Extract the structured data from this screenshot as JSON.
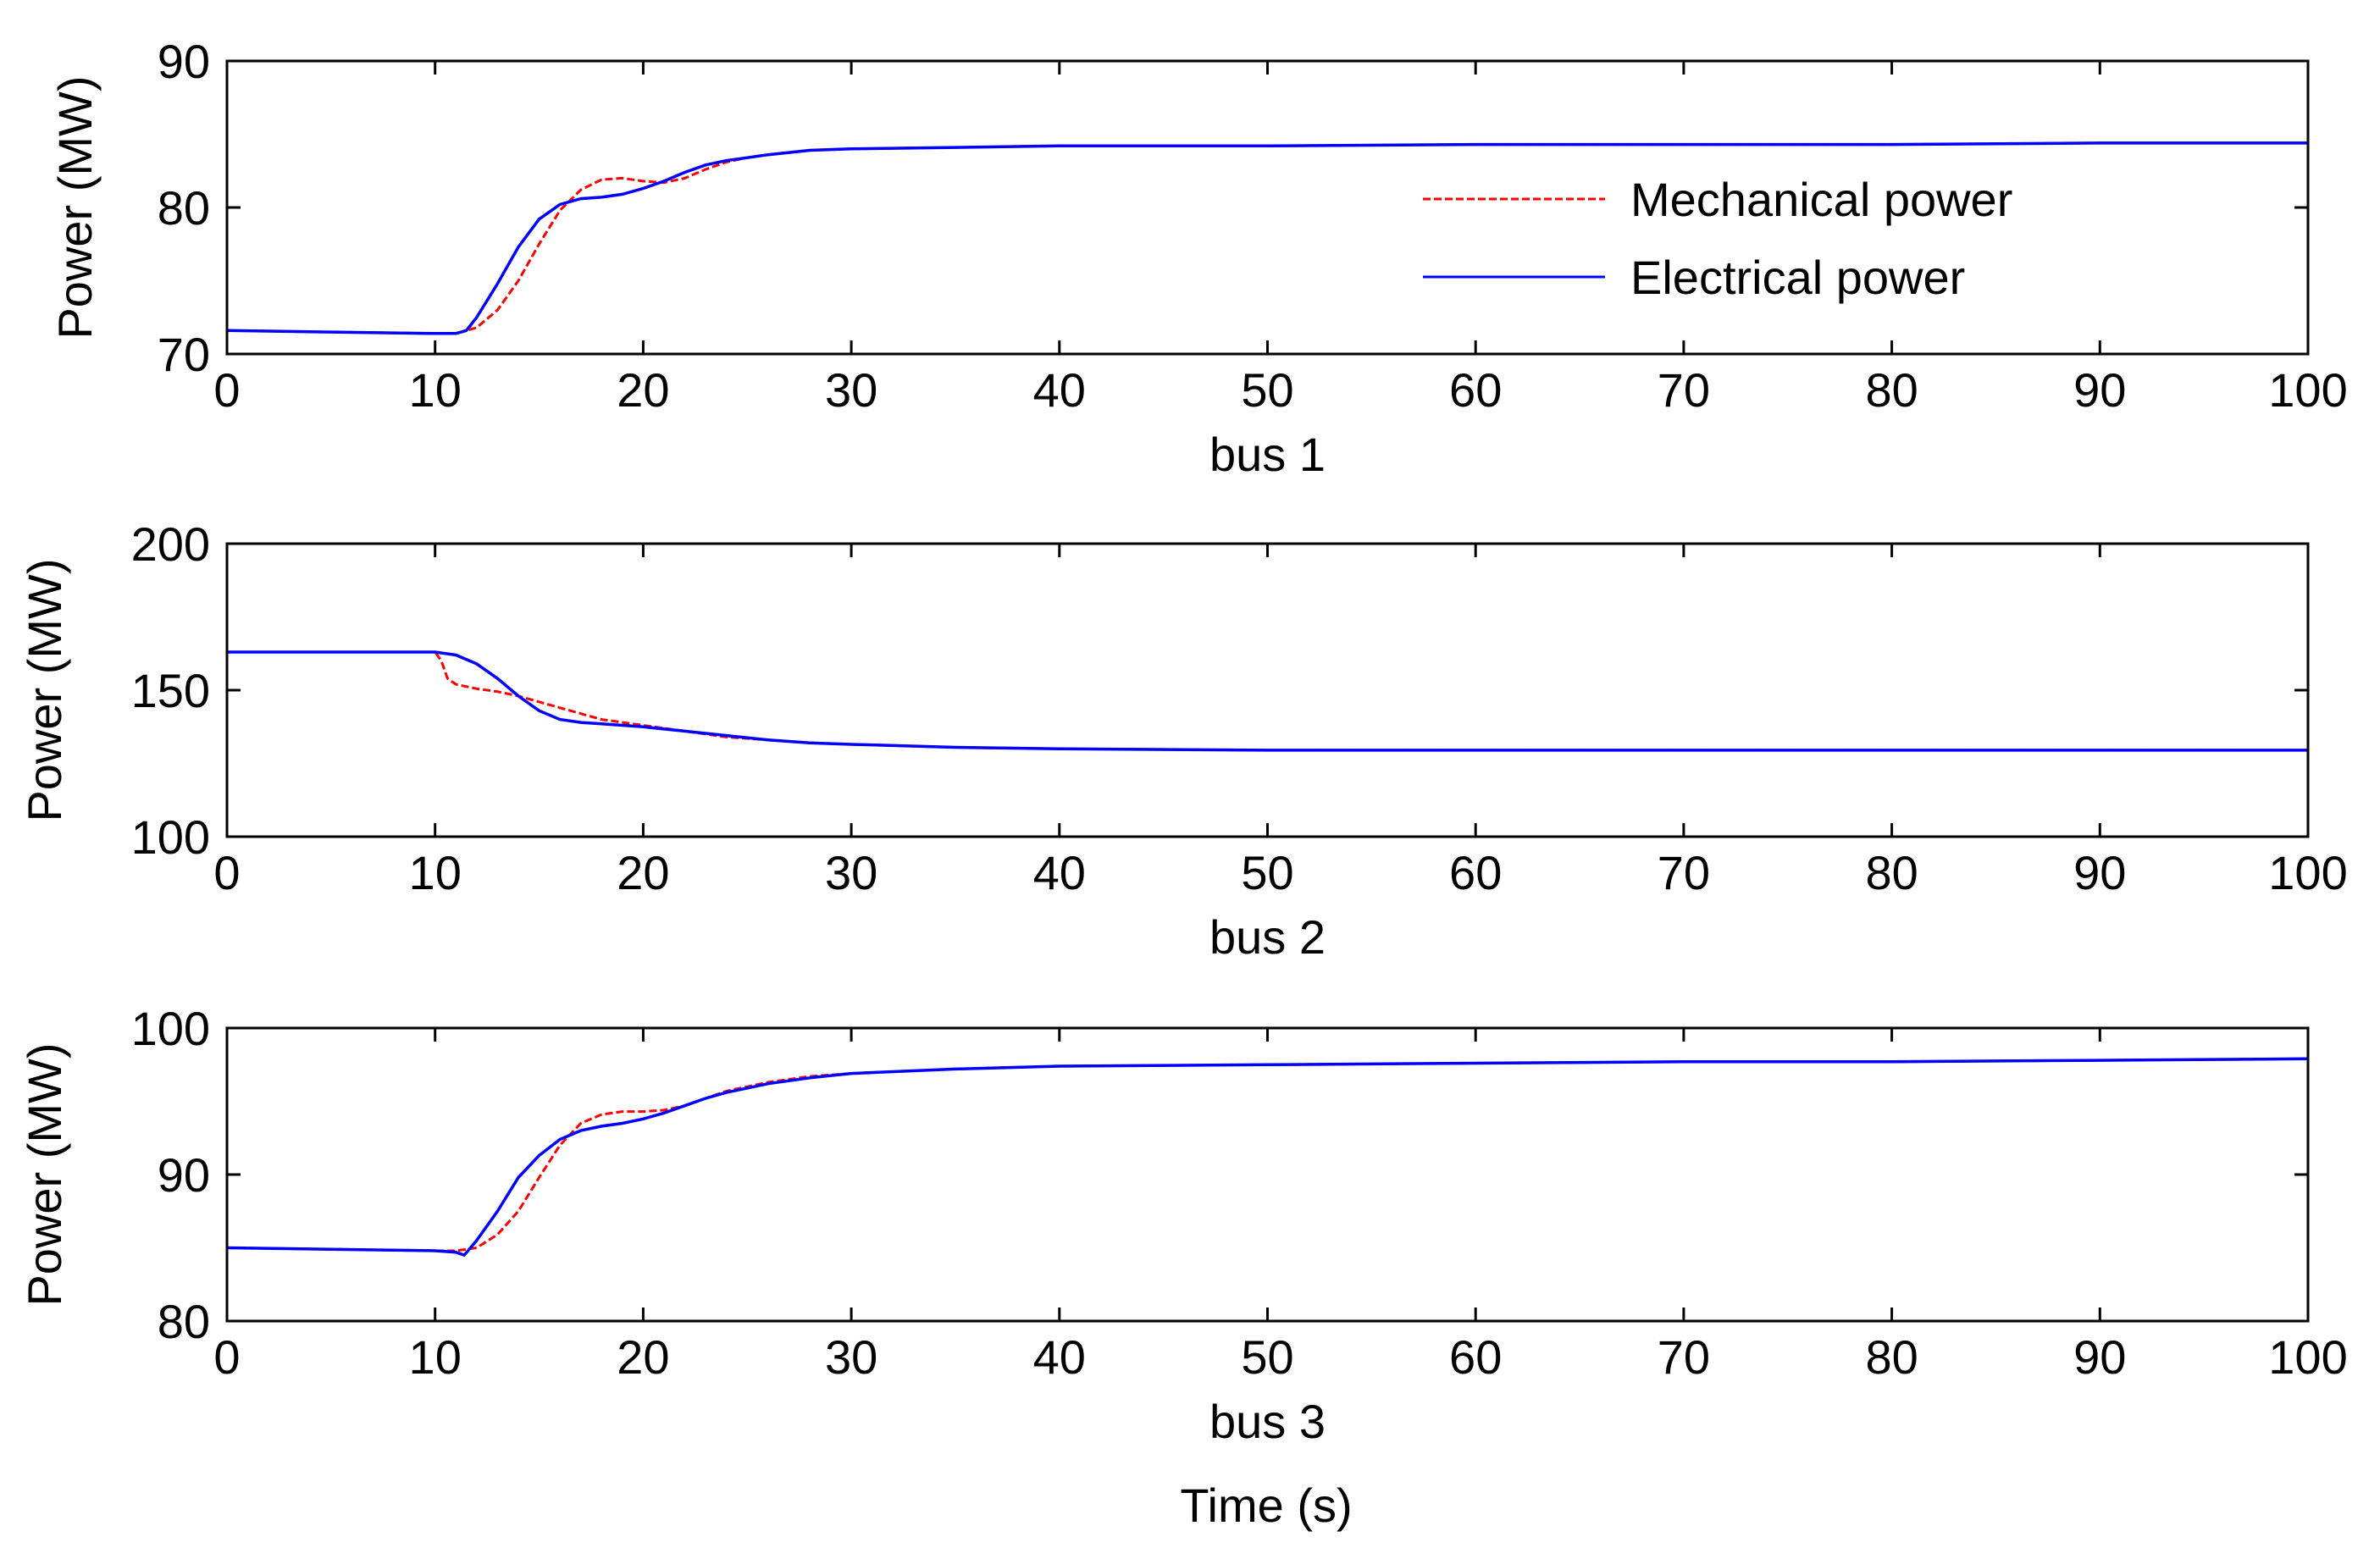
{
  "figure": {
    "xlabel": "Time (s)"
  },
  "chart_data": [
    {
      "type": "line",
      "xlabel": "bus 1",
      "ylabel": "Power (MW)",
      "xlim": [
        0,
        100
      ],
      "ylim": [
        70,
        90
      ],
      "xticks": [
        0,
        10,
        20,
        30,
        40,
        50,
        60,
        70,
        80,
        90,
        100
      ],
      "yticks": [
        70,
        80,
        90
      ],
      "grid": false,
      "legend": "upper-right",
      "series": [
        {
          "name": "Mechanical power",
          "color": "#ff0000",
          "style": "dashed",
          "x": [
            0,
            5,
            10,
            11,
            12,
            13,
            14,
            15,
            16,
            17,
            18,
            19,
            20,
            21,
            22,
            23,
            24,
            25,
            26,
            28,
            30,
            35,
            40,
            50,
            60,
            70,
            80,
            90,
            100
          ],
          "y": [
            71.6,
            71.5,
            71.4,
            71.4,
            71.8,
            73.0,
            75.0,
            77.5,
            79.8,
            81.2,
            81.9,
            82.0,
            81.8,
            81.7,
            82.0,
            82.6,
            83.1,
            83.4,
            83.6,
            83.9,
            84.0,
            84.1,
            84.2,
            84.2,
            84.3,
            84.3,
            84.3,
            84.4,
            84.4
          ]
        },
        {
          "name": "Electrical power",
          "color": "#0000ff",
          "style": "solid",
          "x": [
            0,
            5,
            10,
            11,
            11.5,
            12,
            13,
            14,
            15,
            16,
            17,
            18,
            19,
            20,
            21,
            22,
            23,
            24,
            25,
            26,
            28,
            30,
            35,
            40,
            50,
            60,
            70,
            80,
            90,
            100
          ],
          "y": [
            71.6,
            71.5,
            71.4,
            71.4,
            71.6,
            72.5,
            74.8,
            77.3,
            79.2,
            80.2,
            80.6,
            80.7,
            80.9,
            81.3,
            81.8,
            82.4,
            82.9,
            83.2,
            83.4,
            83.6,
            83.9,
            84.0,
            84.1,
            84.2,
            84.2,
            84.3,
            84.3,
            84.3,
            84.4,
            84.4
          ]
        }
      ]
    },
    {
      "type": "line",
      "xlabel": "bus 2",
      "ylabel": "Power (MW)",
      "xlim": [
        0,
        100
      ],
      "ylim": [
        100,
        200
      ],
      "xticks": [
        0,
        10,
        20,
        30,
        40,
        50,
        60,
        70,
        80,
        90,
        100
      ],
      "yticks": [
        100,
        150,
        200
      ],
      "grid": false,
      "series": [
        {
          "name": "Mechanical power",
          "color": "#ff0000",
          "style": "dashed",
          "x": [
            0,
            10,
            10.3,
            10.6,
            11,
            12,
            13,
            14,
            15,
            16,
            17,
            18,
            20,
            22,
            24,
            26,
            28,
            30,
            35,
            40,
            50,
            60,
            70,
            80,
            90,
            100
          ],
          "y": [
            163,
            163,
            160,
            154,
            152,
            150.5,
            149.5,
            148,
            146,
            144,
            142,
            140,
            138,
            136,
            134,
            133,
            132,
            131.5,
            130.5,
            130,
            129.5,
            129.5,
            129.5,
            129.5,
            129.5,
            129.5
          ]
        },
        {
          "name": "Electrical power",
          "color": "#0000ff",
          "style": "solid",
          "x": [
            0,
            10,
            11,
            12,
            13,
            14,
            15,
            16,
            17,
            18,
            20,
            22,
            24,
            26,
            28,
            30,
            35,
            40,
            50,
            60,
            70,
            80,
            90,
            100
          ],
          "y": [
            163,
            163,
            162,
            159,
            154,
            148,
            143,
            140,
            139,
            138.5,
            137.5,
            136,
            134.5,
            133,
            132,
            131.5,
            130.5,
            130,
            129.5,
            129.5,
            129.5,
            129.5,
            129.5,
            129.5
          ]
        }
      ]
    },
    {
      "type": "line",
      "xlabel": "bus 3",
      "ylabel": "Power (MW)",
      "xlim": [
        0,
        100
      ],
      "ylim": [
        80,
        100
      ],
      "xticks": [
        0,
        10,
        20,
        30,
        40,
        50,
        60,
        70,
        80,
        90,
        100
      ],
      "yticks": [
        80,
        90,
        100
      ],
      "grid": false,
      "series": [
        {
          "name": "Mechanical power",
          "color": "#ff0000",
          "style": "dashed",
          "x": [
            0,
            5,
            10,
            11,
            12,
            13,
            14,
            15,
            16,
            17,
            18,
            19,
            20,
            21,
            22,
            23,
            24,
            25,
            26,
            28,
            30,
            35,
            40,
            50,
            60,
            70,
            80,
            90,
            100
          ],
          "y": [
            85.0,
            84.9,
            84.8,
            84.8,
            85.0,
            85.9,
            87.5,
            89.8,
            92.0,
            93.5,
            94.1,
            94.3,
            94.3,
            94.4,
            94.7,
            95.2,
            95.7,
            96.0,
            96.3,
            96.7,
            96.9,
            97.2,
            97.4,
            97.5,
            97.6,
            97.7,
            97.7,
            97.8,
            97.9
          ]
        },
        {
          "name": "Electrical power",
          "color": "#0000ff",
          "style": "solid",
          "x": [
            0,
            5,
            10,
            11,
            11.4,
            12,
            13,
            14,
            15,
            16,
            17,
            18,
            19,
            20,
            21,
            22,
            23,
            24,
            25,
            26,
            28,
            30,
            35,
            40,
            50,
            60,
            70,
            80,
            90,
            100
          ],
          "y": [
            85.0,
            84.9,
            84.8,
            84.7,
            84.5,
            85.5,
            87.5,
            89.8,
            91.3,
            92.4,
            93.0,
            93.3,
            93.5,
            93.8,
            94.2,
            94.7,
            95.2,
            95.6,
            95.9,
            96.2,
            96.6,
            96.9,
            97.2,
            97.4,
            97.5,
            97.6,
            97.7,
            97.7,
            97.8,
            97.9
          ]
        }
      ]
    }
  ]
}
